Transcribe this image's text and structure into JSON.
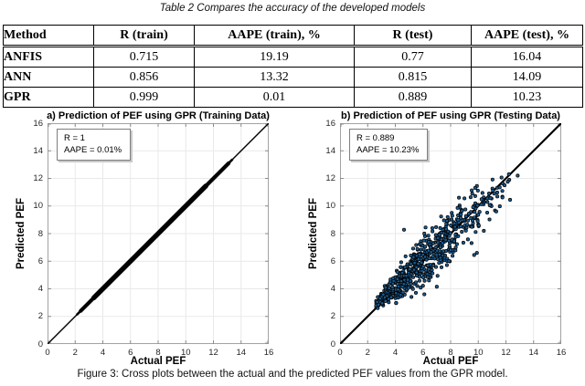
{
  "table": {
    "title": "Table 2 Compares the accuracy of the developed models",
    "headers": [
      "Method",
      "R (train)",
      "AAPE (train), %",
      "R (test)",
      "AAPE (test), %"
    ],
    "rows": [
      [
        "ANFIS",
        "0.715",
        "19.19",
        "0.77",
        "16.04"
      ],
      [
        "ANN",
        "0.856",
        "13.32",
        "0.815",
        "14.09"
      ],
      [
        "GPR",
        "0.999",
        "0.01",
        "0.889",
        "10.23"
      ]
    ]
  },
  "figure_caption": "Figure 3: Cross plots between the actual and the predicted PEF values from the GPR model.",
  "colors": {
    "marker_fill": "#1b5a8e",
    "marker_edge": "#000000",
    "line": "#000000",
    "grid": "#e9e9e9",
    "axis_box": "#a3a3a3",
    "tick": "#8c8c8c",
    "tick_label": "#262626"
  },
  "chart_data": [
    {
      "type": "scatter",
      "panel": "a",
      "title": "a) Prediction of PEF using GPR (Training Data)",
      "xlabel": "Actual PEF",
      "ylabel": "Predicted PEF",
      "xlim": [
        0,
        16
      ],
      "ylim": [
        0,
        16
      ],
      "xticks": [
        0,
        2,
        4,
        6,
        8,
        10,
        12,
        14,
        16
      ],
      "yticks": [
        0,
        2,
        4,
        6,
        8,
        10,
        12,
        14,
        16
      ],
      "grid": true,
      "annotation_lines": [
        "R = 1",
        "AAPE = 0.01%"
      ],
      "R": 1,
      "AAPE_percent": 0.01,
      "identity_line": {
        "from": [
          0,
          0
        ],
        "to": [
          16,
          16
        ]
      },
      "dense_diagonal_band": {
        "from": 2.15,
        "to": 13.35,
        "note": "training predictions collapse onto the y = x line as a thick black band"
      }
    },
    {
      "type": "scatter",
      "panel": "b",
      "title": "b) Prediction of PEF using GPR (Testing Data)",
      "xlabel": "Actual PEF",
      "ylabel": "Predicted PEF",
      "xlim": [
        0,
        16
      ],
      "ylim": [
        0,
        16
      ],
      "xticks": [
        0,
        2,
        4,
        6,
        8,
        10,
        12,
        14,
        16
      ],
      "yticks": [
        0,
        2,
        4,
        6,
        8,
        10,
        12,
        14,
        16
      ],
      "grid": true,
      "annotation_lines": [
        "R = 0.889",
        "AAPE = 10.23%"
      ],
      "R": 0.889,
      "AAPE_percent": 10.23,
      "identity_line": {
        "from": [
          0,
          0
        ],
        "to": [
          16,
          16
        ]
      },
      "points_cloud": {
        "seed": 20,
        "count": 640,
        "x_base": 2.6,
        "x_spread": 10.4,
        "x_pow": 1.6,
        "slope": 0.92,
        "intercept": 0.45,
        "noise_sd_scale": 1.7,
        "noise_ramp": {
          "base": 0.25,
          "per_unit": 0.25,
          "max": 1.0
        },
        "y_clip": [
          2.6,
          12.3
        ]
      },
      "outlier_points": [
        [
          12.85,
          12.2
        ],
        [
          12.3,
          10.45
        ],
        [
          11.9,
          11.5
        ],
        [
          11.15,
          10.9
        ],
        [
          11.3,
          9.6
        ],
        [
          4.63,
          8.28
        ],
        [
          8.6,
          10.6
        ],
        [
          9.0,
          10.55
        ],
        [
          10.4,
          8.2
        ],
        [
          2.78,
          2.85
        ],
        [
          2.9,
          3.3
        ],
        [
          3.05,
          2.95
        ],
        [
          9.7,
          6.45
        ],
        [
          9.9,
          6.6
        ],
        [
          6.1,
          3.6
        ],
        [
          7.0,
          4.15
        ]
      ]
    }
  ]
}
